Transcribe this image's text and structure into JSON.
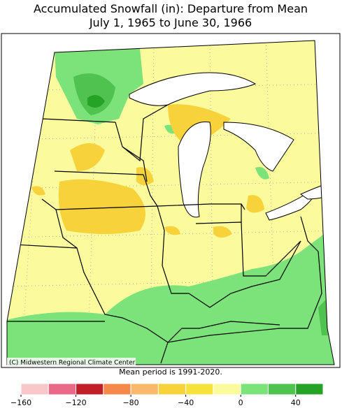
{
  "header": {
    "title": "Accumulated Snowfall (in): Departure from Mean",
    "subtitle": "July 1, 1965 to June 30, 1966"
  },
  "map": {
    "credit": "(C) Midwestern Regional Climate Center"
  },
  "note": "Mean period is 1991-2020.",
  "colorbar": {
    "bins": [
      -160,
      -140,
      -120,
      -100,
      -80,
      -60,
      -40,
      -20,
      0,
      20,
      40,
      60
    ],
    "colors": [
      "#f8c8c8",
      "#e86a88",
      "#c01f2a",
      "#f5894a",
      "#f9b86a",
      "#f8d23a",
      "#f6e23c",
      "#fbfb9e",
      "#7ce27a",
      "#4fc24f",
      "#26a326"
    ],
    "ticks": [
      {
        "value": -160,
        "label": "−160"
      },
      {
        "value": -120,
        "label": "−120"
      },
      {
        "value": -80,
        "label": "−80"
      },
      {
        "value": -40,
        "label": "−40"
      },
      0,
      40
    ]
  }
}
